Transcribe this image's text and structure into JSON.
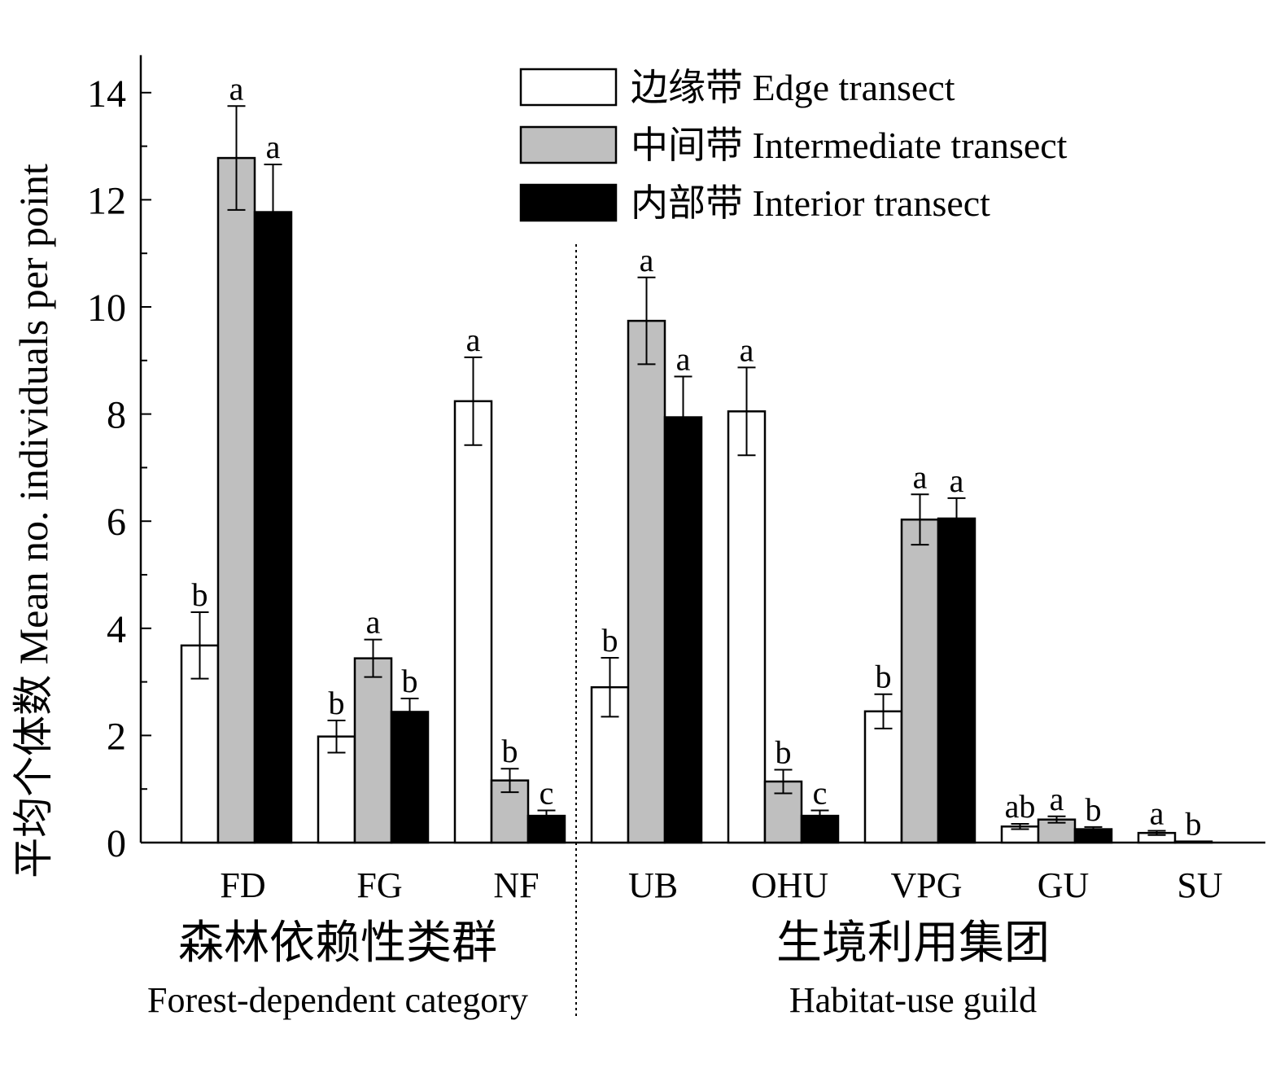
{
  "chart_data": {
    "type": "bar",
    "ylabel": "平均个体数 Mean no. individuals per point",
    "ylim": [
      0,
      14.7
    ],
    "yticks": [
      0,
      2,
      4,
      6,
      8,
      10,
      12,
      14
    ],
    "grid": false,
    "legend_position": "top-right",
    "groups": [
      {
        "label_cn": "森林依赖性类群",
        "label_en": "Forest-dependent category",
        "categories": [
          "FD",
          "FG",
          "NF"
        ]
      },
      {
        "label_cn": "生境利用集团",
        "label_en": "Habitat-use guild",
        "categories": [
          "UB",
          "OHU",
          "VPG",
          "GU",
          "SU"
        ]
      }
    ],
    "categories": [
      "FD",
      "FG",
      "NF",
      "UB",
      "OHU",
      "VPG",
      "GU",
      "SU"
    ],
    "series": [
      {
        "name": "边缘带 Edge transect",
        "color": "#ffffff",
        "values": [
          3.68,
          1.98,
          8.24,
          2.9,
          8.05,
          2.45,
          0.3,
          0.18
        ],
        "errors": [
          0.62,
          0.3,
          0.82,
          0.55,
          0.82,
          0.32,
          0.05,
          0.04
        ],
        "sig": [
          "b",
          "b",
          "a",
          "b",
          "a",
          "b",
          "ab",
          "a"
        ]
      },
      {
        "name": "中间带 Intermediate transect",
        "color": "#bfbfbf",
        "values": [
          12.78,
          3.44,
          1.16,
          9.74,
          1.14,
          6.03,
          0.43,
          0.02
        ],
        "errors": [
          0.97,
          0.35,
          0.22,
          0.81,
          0.22,
          0.47,
          0.06,
          0.0
        ],
        "sig": [
          "a",
          "a",
          "b",
          "a",
          "b",
          "a",
          "a",
          "b"
        ]
      },
      {
        "name": "内部带 Interior transect",
        "color": "#000000",
        "values": [
          11.77,
          2.44,
          0.5,
          7.94,
          0.5,
          6.05,
          0.25,
          0
        ],
        "errors": [
          0.89,
          0.25,
          0.1,
          0.76,
          0.1,
          0.38,
          0.04,
          0
        ],
        "sig": [
          "a",
          "b",
          "c",
          "a",
          "c",
          "a",
          "b",
          ""
        ]
      }
    ]
  }
}
